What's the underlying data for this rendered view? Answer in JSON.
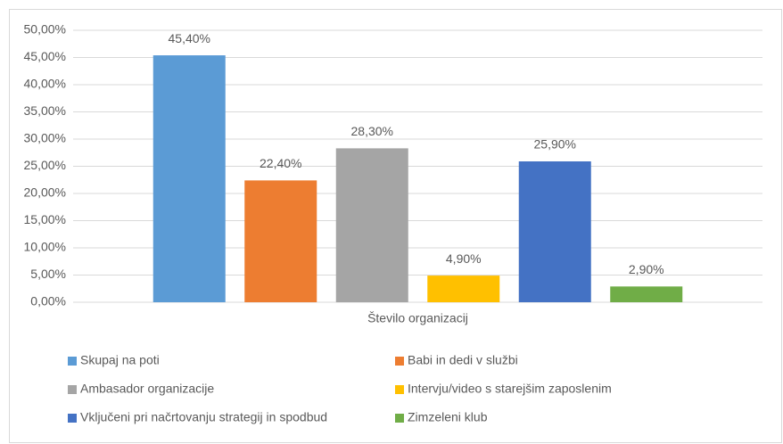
{
  "chart_data": {
    "type": "bar",
    "categories": [
      "Število organizacij"
    ],
    "series": [
      {
        "name": "Skupaj na poti",
        "color": "#5b9bd5",
        "values": [
          45.4
        ],
        "value_labels": [
          "45,40%"
        ]
      },
      {
        "name": "Babi in dedi v službi",
        "color": "#ed7d31",
        "values": [
          22.4
        ],
        "value_labels": [
          "22,40%"
        ]
      },
      {
        "name": "Ambasador organizacije",
        "color": "#a5a5a5",
        "values": [
          28.3
        ],
        "value_labels": [
          "28,30%"
        ]
      },
      {
        "name": "Intervju/video s starejšim zaposlenim",
        "color": "#ffc000",
        "values": [
          4.9
        ],
        "value_labels": [
          "4,90%"
        ]
      },
      {
        "name": "Vključeni pri načrtovanju strategij in spodbud",
        "color": "#4472c4",
        "values": [
          25.9
        ],
        "value_labels": [
          "25,90%"
        ]
      },
      {
        "name": "Zimzeleni klub",
        "color": "#70ad47",
        "values": [
          2.9
        ],
        "value_labels": [
          "2,90%"
        ]
      }
    ],
    "ylim": [
      0,
      50
    ],
    "yticks": [
      {
        "value": 0,
        "label": "0,00%"
      },
      {
        "value": 5,
        "label": "5,00%"
      },
      {
        "value": 10,
        "label": "10,00%"
      },
      {
        "value": 15,
        "label": "15,00%"
      },
      {
        "value": 20,
        "label": "20,00%"
      },
      {
        "value": 25,
        "label": "25,00%"
      },
      {
        "value": 30,
        "label": "30,00%"
      },
      {
        "value": 35,
        "label": "35,00%"
      },
      {
        "value": 40,
        "label": "40,00%"
      },
      {
        "value": 45,
        "label": "45,00%"
      },
      {
        "value": 50,
        "label": "50,00%"
      }
    ],
    "grid": true,
    "legend": "bottom"
  }
}
